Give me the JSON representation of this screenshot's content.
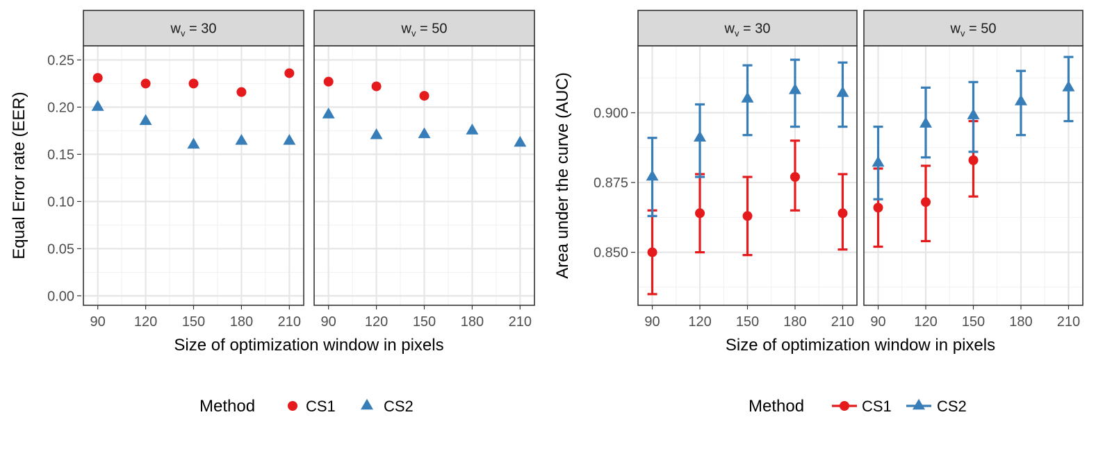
{
  "chart_data": [
    {
      "type": "scatter",
      "ylabel": "Equal Error rate (EER)",
      "xlabel": "Size of optimization window in pixels",
      "ylim": [
        -0.01,
        0.265
      ],
      "yticks": [
        "0.00",
        "0.05",
        "0.10",
        "0.15",
        "0.20",
        "0.25"
      ],
      "xticks": [
        "90",
        "120",
        "150",
        "180",
        "210"
      ],
      "grid": true,
      "legend": {
        "title": "Method",
        "position": "bottom",
        "entries": [
          {
            "label": "CS1",
            "color": "#e41a1c",
            "shape": "circle"
          },
          {
            "label": "CS2",
            "color": "#377eb8",
            "shape": "triangle"
          }
        ]
      },
      "panels": [
        {
          "strip": "w",
          "strip_sub": "v",
          "strip_rest": " = 30",
          "series": [
            {
              "name": "CS1",
              "x": [
                90,
                120,
                150,
                180,
                210
              ],
              "y": [
                0.231,
                0.225,
                0.225,
                0.216,
                0.236
              ]
            },
            {
              "name": "CS2",
              "x": [
                90,
                120,
                150,
                180,
                210
              ],
              "y": [
                0.2,
                0.185,
                0.16,
                0.164,
                0.164
              ]
            }
          ]
        },
        {
          "strip": "w",
          "strip_sub": "v",
          "strip_rest": " = 50",
          "series": [
            {
              "name": "CS1",
              "x": [
                90,
                120,
                150
              ],
              "y": [
                0.227,
                0.222,
                0.212
              ]
            },
            {
              "name": "CS2",
              "x": [
                90,
                120,
                150,
                180,
                210
              ],
              "y": [
                0.192,
                0.17,
                0.171,
                0.175,
                0.162
              ]
            }
          ]
        }
      ]
    },
    {
      "type": "scatter",
      "ylabel": "Area under the curve (AUC)",
      "xlabel": "Size of optimization window in pixels",
      "ylim": [
        0.831,
        0.924
      ],
      "yticks": [
        "0.850",
        "0.875",
        "0.900"
      ],
      "xticks": [
        "90",
        "120",
        "150",
        "180",
        "210"
      ],
      "grid": true,
      "legend": {
        "title": "Method",
        "position": "bottom",
        "entries": [
          {
            "label": "CS1",
            "color": "#e41a1c",
            "shape": "circle"
          },
          {
            "label": "CS2",
            "color": "#377eb8",
            "shape": "triangle"
          }
        ]
      },
      "panels": [
        {
          "strip": "w",
          "strip_sub": "v",
          "strip_rest": " = 30",
          "series": [
            {
              "name": "CS1",
              "x": [
                90,
                120,
                150,
                180,
                210
              ],
              "y": [
                0.85,
                0.864,
                0.863,
                0.877,
                0.864
              ],
              "ymin": [
                0.835,
                0.85,
                0.849,
                0.865,
                0.851
              ],
              "ymax": [
                0.865,
                0.878,
                0.877,
                0.89,
                0.878
              ]
            },
            {
              "name": "CS2",
              "x": [
                90,
                120,
                150,
                180,
                210
              ],
              "y": [
                0.877,
                0.891,
                0.905,
                0.908,
                0.907
              ],
              "ymin": [
                0.863,
                0.877,
                0.892,
                0.895,
                0.895
              ],
              "ymax": [
                0.891,
                0.903,
                0.917,
                0.919,
                0.918
              ]
            }
          ]
        },
        {
          "strip": "w",
          "strip_sub": "v",
          "strip_rest": " = 50",
          "series": [
            {
              "name": "CS1",
              "x": [
                90,
                120,
                150
              ],
              "y": [
                0.866,
                0.868,
                0.883
              ],
              "ymin": [
                0.852,
                0.854,
                0.87
              ],
              "ymax": [
                0.88,
                0.881,
                0.897
              ]
            },
            {
              "name": "CS2",
              "x": [
                90,
                120,
                150,
                180,
                210
              ],
              "y": [
                0.882,
                0.896,
                0.899,
                0.904,
                0.909
              ],
              "ymin": [
                0.869,
                0.884,
                0.886,
                0.892,
                0.897
              ],
              "ymax": [
                0.895,
                0.909,
                0.911,
                0.915,
                0.92
              ]
            }
          ]
        }
      ]
    }
  ]
}
